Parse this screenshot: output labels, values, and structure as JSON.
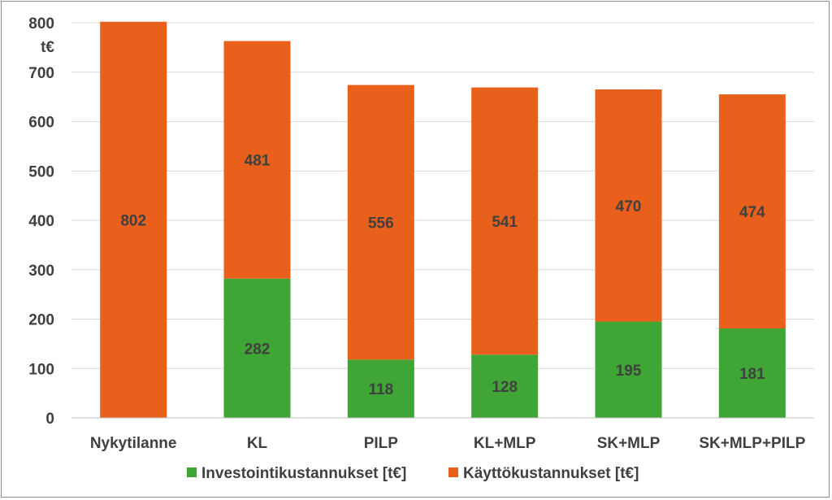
{
  "chart_data": {
    "type": "bar",
    "stacked": true,
    "categories": [
      "Nykytilanne",
      "KL",
      "PILP",
      "KL+MLP",
      "SK+MLP",
      "SK+MLP+PILP"
    ],
    "series": [
      {
        "name": "Investointikustannukset [t€]",
        "color": "#3fa535",
        "values": [
          0,
          282,
          118,
          128,
          195,
          181
        ],
        "labels": [
          "",
          "282",
          "118",
          "128",
          "195",
          "181"
        ]
      },
      {
        "name": "Käyttökustannukset [t€]",
        "color": "#e8601c",
        "values": [
          802,
          481,
          556,
          541,
          470,
          474
        ],
        "labels": [
          "802",
          "481",
          "556",
          "541",
          "470",
          "474"
        ]
      }
    ],
    "yticks": [
      "0",
      "100",
      "200",
      "300",
      "400",
      "500",
      "600",
      "700",
      "800"
    ],
    "ylim": [
      0,
      800
    ],
    "y_unit": "t€",
    "grid": true,
    "legend_position": "bottom"
  }
}
